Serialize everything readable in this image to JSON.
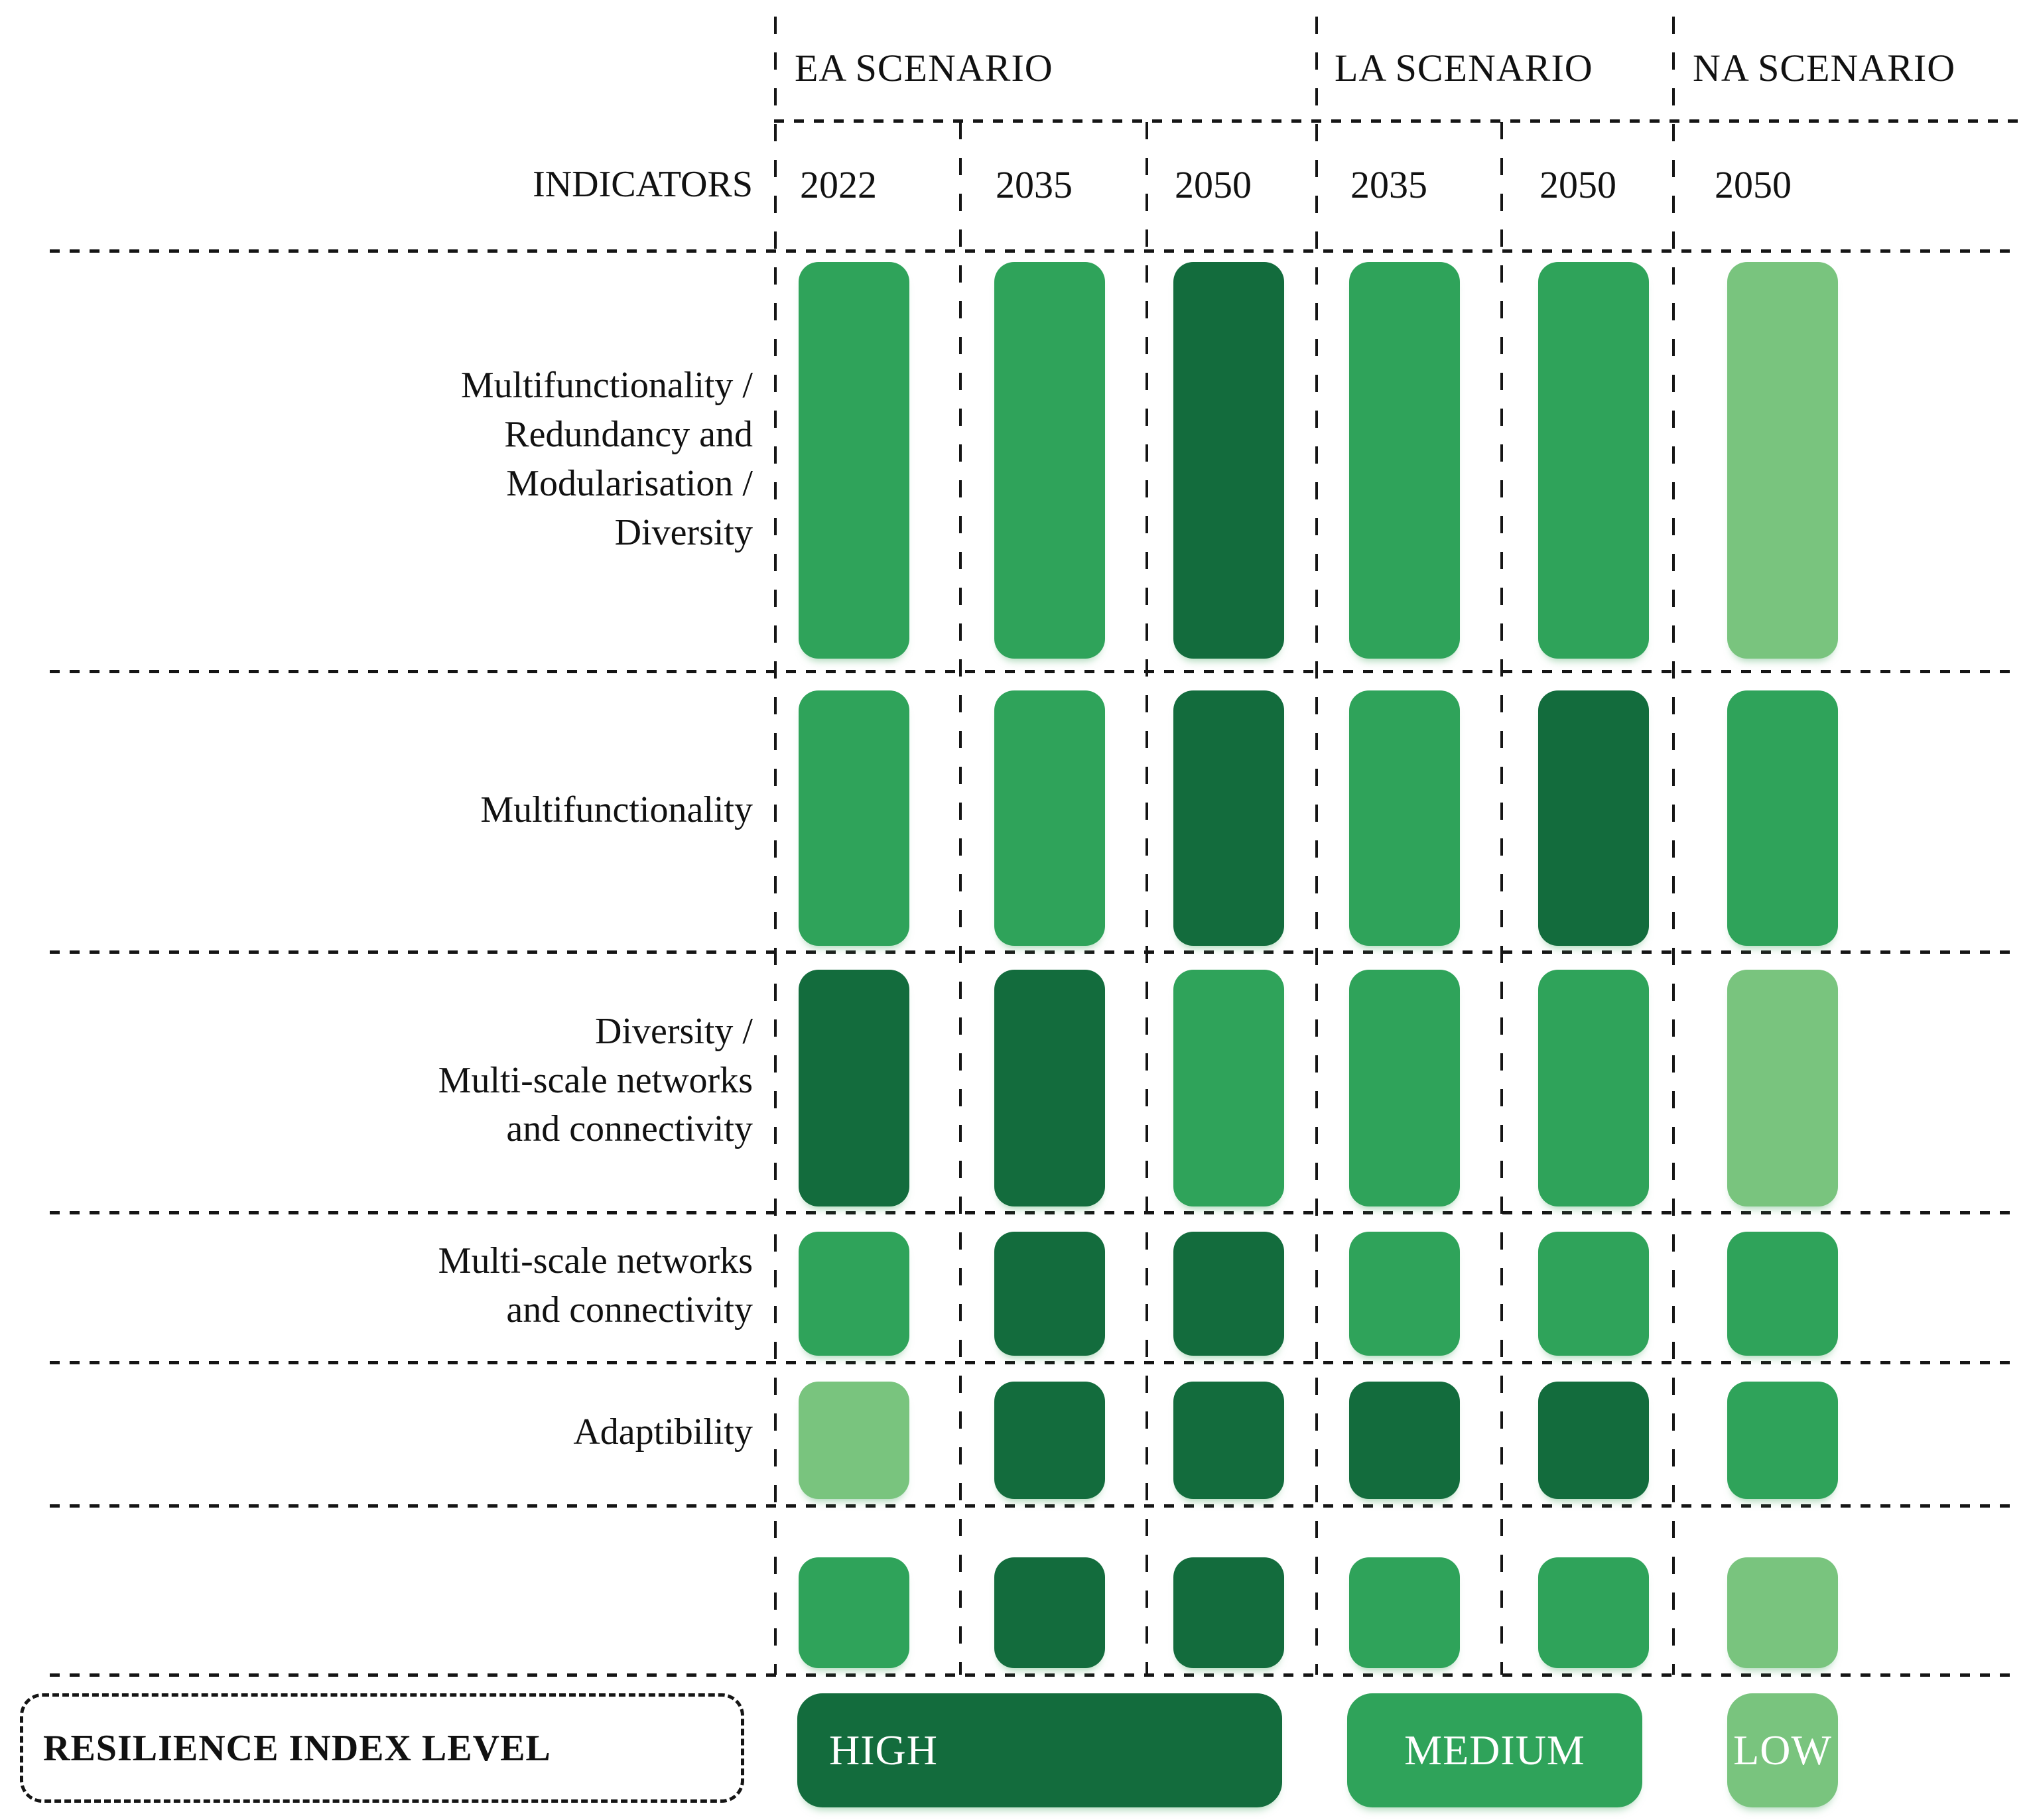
{
  "header": {
    "indicators_label": "INDICATORS",
    "scenarios": [
      {
        "label": "EA SCENARIO"
      },
      {
        "label": "LA SCENARIO"
      },
      {
        "label": "NA SCENARIO"
      }
    ]
  },
  "chart_data": {
    "type": "heatmap",
    "legend_position": "bottom",
    "columns": [
      {
        "scenario": "EA SCENARIO",
        "year": "2022"
      },
      {
        "scenario": "EA SCENARIO",
        "year": "2035"
      },
      {
        "scenario": "EA SCENARIO",
        "year": "2050"
      },
      {
        "scenario": "LA SCENARIO",
        "year": "2035"
      },
      {
        "scenario": "LA SCENARIO",
        "year": "2050"
      },
      {
        "scenario": "NA SCENARIO",
        "year": "2050"
      }
    ],
    "rows": [
      {
        "label": "Multifunctionality /\nRedundancy and\nModularisation /\nDiversity"
      },
      {
        "label": "Multifunctionality"
      },
      {
        "label": "Diversity /\nMulti-scale networks\nand connectivity"
      },
      {
        "label": "Multi-scale networks\nand connectivity"
      },
      {
        "label": "Adaptibility"
      },
      {
        "label": ""
      }
    ],
    "values": [
      [
        "MEDIUM",
        "MEDIUM",
        "HIGH",
        "MEDIUM",
        "MEDIUM",
        "LOW"
      ],
      [
        "MEDIUM",
        "MEDIUM",
        "HIGH",
        "MEDIUM",
        "HIGH",
        "MEDIUM"
      ],
      [
        "HIGH",
        "HIGH",
        "MEDIUM",
        "MEDIUM",
        "MEDIUM",
        "LOW"
      ],
      [
        "MEDIUM",
        "HIGH",
        "HIGH",
        "MEDIUM",
        "MEDIUM",
        "MEDIUM"
      ],
      [
        "LOW",
        "HIGH",
        "HIGH",
        "HIGH",
        "HIGH",
        "MEDIUM"
      ],
      [
        "MEDIUM",
        "HIGH",
        "HIGH",
        "MEDIUM",
        "MEDIUM",
        "LOW"
      ]
    ]
  },
  "legend": {
    "title": "RESILIENCE INDEX LEVEL",
    "items": [
      {
        "label": "HIGH",
        "level": "HIGH"
      },
      {
        "label": "MEDIUM",
        "level": "MEDIUM"
      },
      {
        "label": "LOW",
        "level": "LOW"
      }
    ]
  },
  "colors": {
    "HIGH": "#136c3d",
    "MEDIUM": "#2fa35a",
    "LOW": "#79c47e"
  }
}
